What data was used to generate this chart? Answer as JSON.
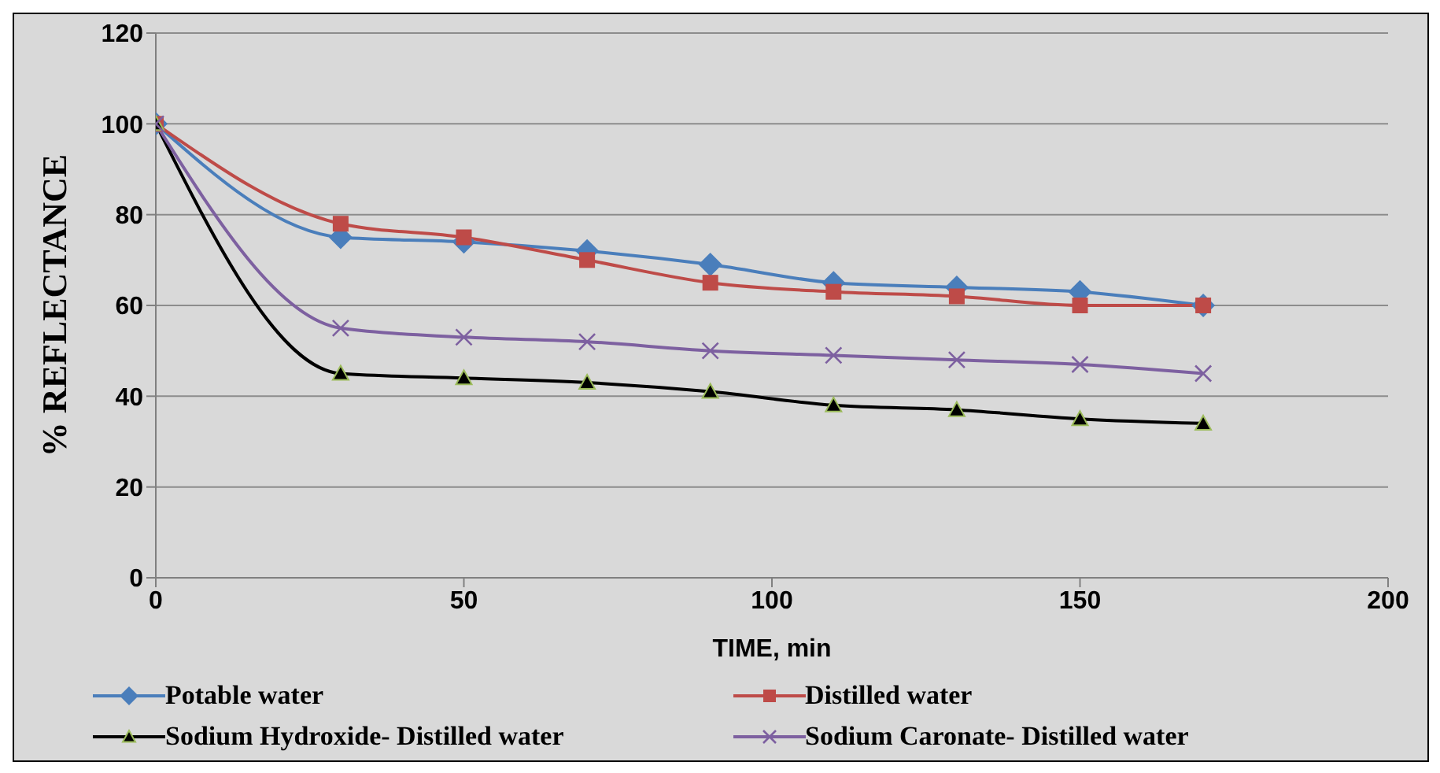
{
  "chart_data": {
    "type": "line",
    "xlabel": "TIME, min",
    "ylabel": "% REFLECTANCE",
    "x": [
      0,
      30,
      50,
      70,
      90,
      110,
      130,
      150,
      170
    ],
    "xlim": [
      0,
      200
    ],
    "xticks": [
      0,
      50,
      100,
      150,
      200
    ],
    "ylim": [
      0,
      120
    ],
    "yticks": [
      0,
      20,
      40,
      60,
      80,
      100,
      120
    ],
    "grid": "y",
    "legend": "bottom",
    "series": [
      {
        "name": "Potable water",
        "color": "#4a7ebb",
        "marker": "diamond",
        "values": [
          100,
          75,
          74,
          72,
          69,
          65,
          64,
          63,
          60
        ]
      },
      {
        "name": "Distilled water",
        "color": "#be4b48",
        "marker": "square",
        "values": [
          100,
          78,
          75,
          70,
          65,
          63,
          62,
          60,
          60
        ]
      },
      {
        "name": "Sodium Hydroxide- Distilled water",
        "color": "#000000",
        "marker": "triangle",
        "values": [
          100,
          45,
          44,
          43,
          41,
          38,
          37,
          35,
          34
        ]
      },
      {
        "name": "Sodium Caronate- Distilled water",
        "color": "#7d60a0",
        "marker": "cross",
        "values": [
          100,
          55,
          53,
          52,
          50,
          49,
          48,
          47,
          45
        ]
      }
    ]
  }
}
